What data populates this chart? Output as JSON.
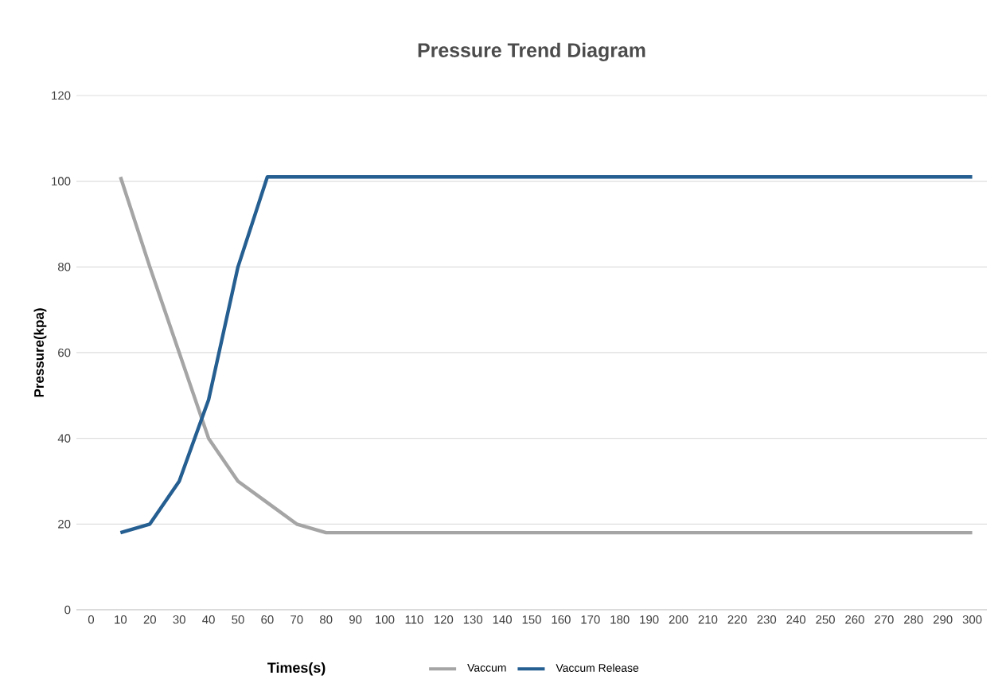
{
  "chart_data": {
    "type": "line",
    "title": "Pressure Trend Diagram",
    "xlabel": "Times(s)",
    "ylabel": "Pressure(kpa)",
    "categories": [
      "0",
      "10",
      "20",
      "30",
      "40",
      "50",
      "60",
      "70",
      "80",
      "90",
      "100",
      "110",
      "120",
      "130",
      "140",
      "150",
      "160",
      "170",
      "180",
      "190",
      "200",
      "210",
      "220",
      "230",
      "240",
      "250",
      "260",
      "270",
      "280",
      "290",
      "300"
    ],
    "series": [
      {
        "name": "Vaccum",
        "color": "#a5a5a5",
        "values": [
          null,
          101,
          80,
          60,
          40,
          30,
          25,
          20,
          18,
          18,
          18,
          18,
          18,
          18,
          18,
          18,
          18,
          18,
          18,
          18,
          18,
          18,
          18,
          18,
          18,
          18,
          18,
          18,
          18,
          18,
          18
        ]
      },
      {
        "name": "Vaccum Release",
        "color": "#255e91",
        "values": [
          null,
          18,
          20,
          30,
          49,
          80,
          101,
          101,
          101,
          101,
          101,
          101,
          101,
          101,
          101,
          101,
          101,
          101,
          101,
          101,
          101,
          101,
          101,
          101,
          101,
          101,
          101,
          101,
          101,
          101,
          101
        ]
      }
    ],
    "ylim": [
      0,
      120
    ],
    "yticks": [
      0,
      20,
      40,
      60,
      80,
      100,
      120
    ],
    "grid": "y",
    "legend": "bottom",
    "line_style": "solid",
    "marker": "none"
  }
}
